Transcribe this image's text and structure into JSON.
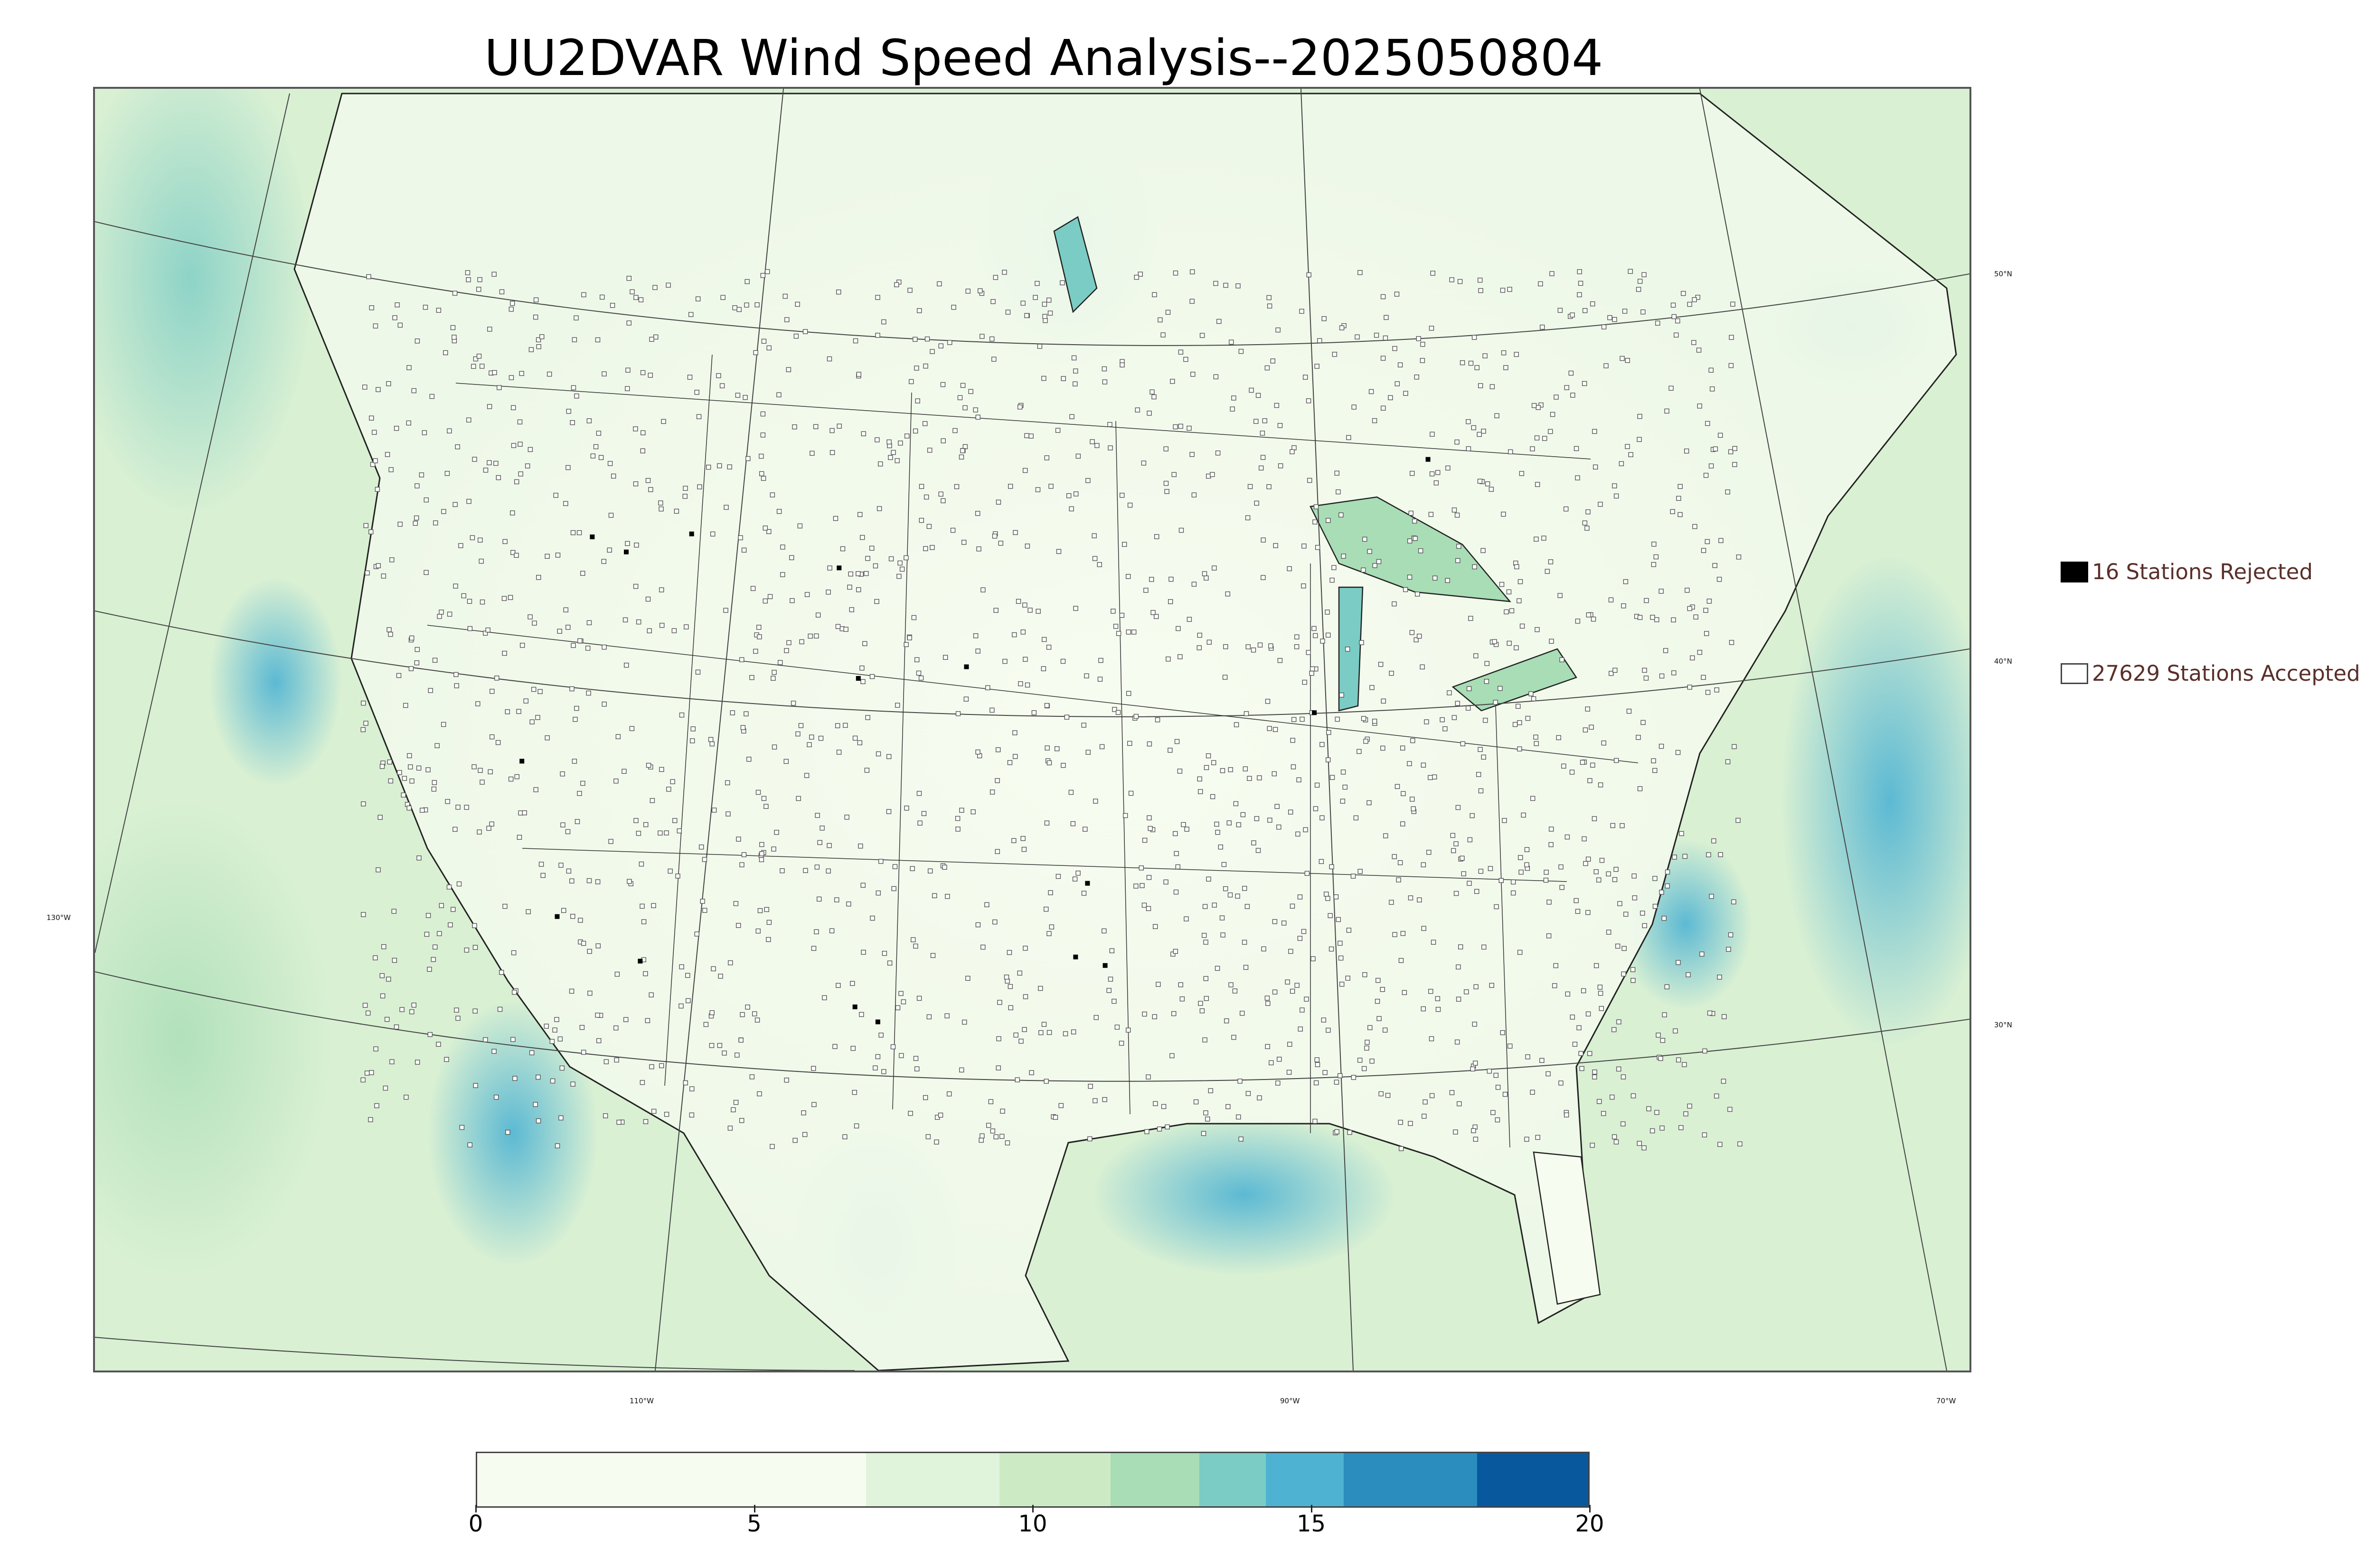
{
  "title": "UU2DVAR Wind Speed Analysis--2025050804",
  "legend": {
    "rejected": {
      "label": "16 Stations Rejected",
      "count": 16,
      "color": "#000000"
    },
    "accepted": {
      "label": "27629 Stations Accepted",
      "count": 27629,
      "color": "#ffffff"
    }
  },
  "map": {
    "parallels": [
      "50°N",
      "40°N",
      "30°N"
    ],
    "meridians": [
      "130°W",
      "110°W",
      "90°W",
      "70°W"
    ]
  },
  "colorbar": {
    "min": 0,
    "max": 20,
    "ticks": [
      "0",
      "5",
      "10",
      "15",
      "20"
    ],
    "colors": [
      "#f7fcf0",
      "#e0f3db",
      "#ccebc5",
      "#a8ddb5",
      "#7bccc4",
      "#4eb3d3",
      "#2b8cbe",
      "#08589e"
    ]
  }
}
